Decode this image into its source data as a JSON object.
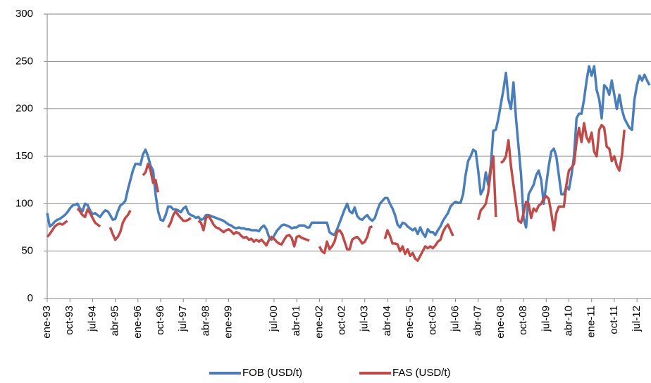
{
  "chart_data": {
    "type": "line",
    "categories": [
      "ene-93",
      null,
      null,
      null,
      null,
      null,
      null,
      null,
      null,
      "oct-93",
      null,
      null,
      null,
      null,
      null,
      null,
      null,
      null,
      "jul-94",
      null,
      null,
      null,
      null,
      null,
      null,
      null,
      null,
      "abr-95",
      null,
      null,
      null,
      null,
      null,
      null,
      null,
      null,
      "ene-96",
      null,
      null,
      null,
      null,
      null,
      null,
      null,
      null,
      "oct-96",
      null,
      null,
      null,
      null,
      null,
      null,
      null,
      null,
      "jul-97",
      null,
      null,
      null,
      null,
      null,
      null,
      null,
      null,
      "abr-98",
      null,
      null,
      null,
      null,
      null,
      null,
      null,
      null,
      "ene-99",
      null,
      null,
      null,
      null,
      null,
      null,
      null,
      null,
      null,
      null,
      null,
      null,
      null,
      null,
      null,
      null,
      null,
      "jul-00",
      null,
      null,
      null,
      null,
      null,
      null,
      null,
      null,
      "abr-01",
      null,
      null,
      null,
      null,
      null,
      null,
      null,
      null,
      "ene-02",
      null,
      null,
      null,
      null,
      null,
      null,
      null,
      null,
      "oct-02",
      null,
      null,
      null,
      null,
      null,
      null,
      null,
      null,
      "jul-03",
      null,
      null,
      null,
      null,
      null,
      null,
      null,
      null,
      "abr-04",
      null,
      null,
      null,
      null,
      null,
      null,
      null,
      null,
      "ene-05",
      null,
      null,
      null,
      null,
      null,
      null,
      null,
      null,
      "oct-05",
      null,
      null,
      null,
      null,
      null,
      null,
      null,
      null,
      "jul-06",
      null,
      null,
      null,
      null,
      null,
      null,
      null,
      null,
      "abr-07",
      null,
      null,
      null,
      null,
      null,
      null,
      null,
      null,
      "ene-08",
      null,
      null,
      null,
      null,
      null,
      null,
      null,
      null,
      "oct-08",
      null,
      null,
      null,
      null,
      null,
      null,
      null,
      null,
      "jul-09",
      null,
      null,
      null,
      null,
      null,
      null,
      null,
      null,
      "abr-10",
      null,
      null,
      null,
      null,
      null,
      null,
      null,
      null,
      "ene-11",
      null,
      null,
      null,
      null,
      null,
      null,
      null,
      null,
      "oct-11",
      null,
      null,
      null,
      null,
      null,
      null,
      null,
      null,
      "jul-12",
      null,
      null,
      null,
      null,
      null
    ],
    "series": [
      {
        "name": "FOB (USD/t)",
        "color": "#4a7ebb",
        "values": [
          90,
          76,
          78,
          81,
          83,
          84,
          86,
          88,
          91,
          95,
          98,
          99,
          100,
          95,
          92,
          100,
          99,
          93,
          89,
          90,
          88,
          86,
          90,
          93,
          92,
          88,
          83,
          84,
          92,
          98,
          100,
          103,
          115,
          125,
          135,
          142,
          142,
          141,
          152,
          157,
          150,
          140,
          135,
          110,
          92,
          83,
          82,
          88,
          97,
          97,
          94,
          94,
          93,
          91,
          95,
          97,
          90,
          88,
          87,
          85,
          86,
          83,
          84,
          88,
          88,
          87,
          86,
          85,
          84,
          83,
          82,
          80,
          78,
          77,
          75,
          74,
          75,
          74,
          74,
          73,
          73,
          72,
          72,
          72,
          71,
          75,
          77,
          73,
          65,
          62,
          66,
          71,
          74,
          77,
          78,
          77,
          76,
          74,
          75,
          75,
          77,
          77,
          77,
          75,
          75,
          80,
          80,
          80,
          80,
          80,
          80,
          80,
          70,
          68,
          67,
          73,
          80,
          87,
          94,
          100,
          92,
          90,
          96,
          87,
          84,
          83,
          86,
          88,
          84,
          82,
          85,
          93,
          100,
          103,
          106,
          106,
          100,
          95,
          88,
          78,
          75,
          80,
          79,
          76,
          74,
          72,
          74,
          68,
          75,
          69,
          65,
          73,
          70,
          70,
          67,
          72,
          76,
          82,
          86,
          90,
          97,
          100,
          102,
          101,
          101,
          110,
          130,
          145,
          150,
          157,
          155,
          135,
          110,
          115,
          133,
          120,
          140,
          177,
          178,
          190,
          205,
          220,
          238,
          210,
          200,
          228,
          190,
          160,
          130,
          85,
          75,
          110,
          115,
          120,
          130,
          135,
          125,
          100,
          120,
          140,
          155,
          158,
          150,
          130,
          110,
          110,
          118,
          115,
          130,
          150,
          190,
          195,
          195,
          210,
          230,
          245,
          235,
          245,
          220,
          210,
          190,
          225,
          222,
          215,
          230,
          215,
          200,
          215,
          200,
          190,
          185,
          180,
          178,
          210,
          225,
          235,
          230,
          236,
          230,
          225
        ]
      },
      {
        "name": "FAS (USD/t)",
        "color": "#be4b48",
        "values": [
          65,
          68,
          72,
          76,
          78,
          79,
          78,
          80,
          82,
          null,
          null,
          null,
          95,
          92,
          88,
          86,
          94,
          90,
          85,
          80,
          78,
          76,
          null,
          null,
          null,
          75,
          68,
          62,
          65,
          70,
          80,
          85,
          88,
          93,
          null,
          null,
          null,
          null,
          130,
          133,
          142,
          135,
          122,
          125,
          112,
          null,
          null,
          null,
          75,
          80,
          88,
          92,
          88,
          85,
          82,
          82,
          83,
          85,
          null,
          null,
          82,
          80,
          72,
          85,
          87,
          83,
          78,
          75,
          74,
          72,
          70,
          72,
          73,
          71,
          68,
          70,
          69,
          66,
          64,
          65,
          62,
          63,
          60,
          62,
          60,
          62,
          59,
          56,
          62,
          65,
          63,
          60,
          58,
          57,
          62,
          66,
          67,
          64,
          55,
          65,
          66,
          64,
          63,
          62,
          61,
          null,
          null,
          null,
          55,
          50,
          48,
          60,
          52,
          55,
          60,
          70,
          72,
          68,
          60,
          52,
          52,
          62,
          64,
          65,
          62,
          58,
          60,
          65,
          75,
          76,
          null,
          null,
          null,
          null,
          63,
          72,
          66,
          58,
          58,
          57,
          50,
          55,
          47,
          52,
          45,
          48,
          42,
          40,
          45,
          50,
          55,
          53,
          55,
          53,
          56,
          60,
          62,
          70,
          75,
          78,
          72,
          66,
          null,
          null,
          null,
          null,
          null,
          null,
          null,
          null,
          null,
          83,
          93,
          96,
          100,
          112,
          135,
          150,
          86,
          null,
          143,
          145,
          150,
          167,
          140,
          120,
          100,
          82,
          80,
          90,
          102,
          100,
          85,
          95,
          92,
          98,
          100,
          105,
          108,
          105,
          90,
          72,
          90,
          97,
          97,
          97,
          120,
          135,
          138,
          142,
          165,
          180,
          165,
          185,
          170,
          165,
          175,
          155,
          150,
          178,
          183,
          180,
          160,
          158,
          145,
          150,
          140,
          135,
          150,
          178,
          null,
          null,
          null,
          null,
          null,
          null,
          null,
          null,
          null,
          null
        ]
      }
    ],
    "ylim": [
      0,
      300
    ],
    "yticks": [
      0,
      50,
      100,
      150,
      200,
      250,
      300
    ],
    "grid": true,
    "legend": "bottom"
  }
}
